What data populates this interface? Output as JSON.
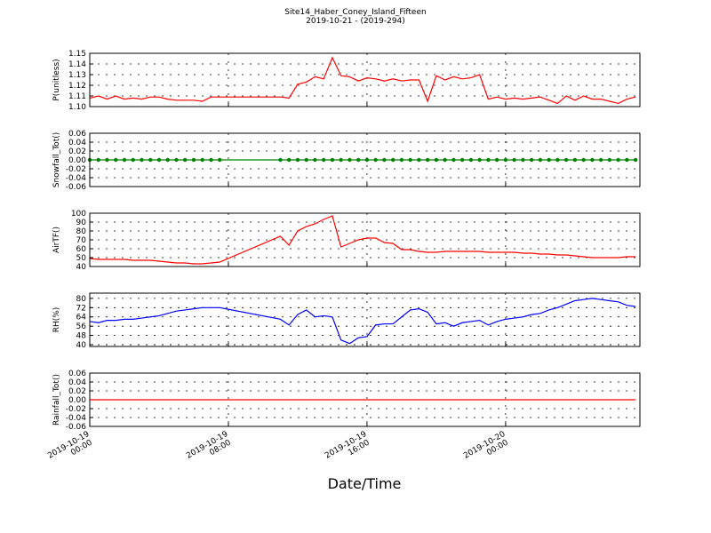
{
  "title": "Site14_Haber_Coney_Island_Fifteen",
  "subtitle": "2019-10-21 - (2019-294)",
  "x_axis": {
    "label": "Date/Time",
    "xlim": [
      "2019-10-19 00:00",
      "2019-10-20 07:45"
    ],
    "xticks": [
      {
        "value": "2019-10-19 00:00",
        "label": "2019-10-19 00:00"
      },
      {
        "value": "2019-10-19 08:00",
        "label": "2019-10-19 08:00"
      },
      {
        "value": "2019-10-19 16:00",
        "label": "2019-10-19 16:00"
      },
      {
        "value": "2019-10-20 00:00",
        "label": "2019-10-20 00:00"
      }
    ],
    "x": [
      "2019-10-19 00:00",
      "2019-10-19 00:30",
      "2019-10-19 01:00",
      "2019-10-19 01:30",
      "2019-10-19 02:00",
      "2019-10-19 02:30",
      "2019-10-19 03:00",
      "2019-10-19 03:30",
      "2019-10-19 04:00",
      "2019-10-19 04:30",
      "2019-10-19 05:00",
      "2019-10-19 05:30",
      "2019-10-19 06:00",
      "2019-10-19 06:30",
      "2019-10-19 07:00",
      "2019-10-19 07:30",
      "2019-10-19 11:00",
      "2019-10-19 11:30",
      "2019-10-19 12:00",
      "2019-10-19 12:30",
      "2019-10-19 13:00",
      "2019-10-19 13:30",
      "2019-10-19 14:00",
      "2019-10-19 14:30",
      "2019-10-19 15:00",
      "2019-10-19 15:30",
      "2019-10-19 16:00",
      "2019-10-19 16:30",
      "2019-10-19 17:00",
      "2019-10-19 17:30",
      "2019-10-19 18:00",
      "2019-10-19 18:30",
      "2019-10-19 19:00",
      "2019-10-19 19:30",
      "2019-10-19 20:00",
      "2019-10-19 20:30",
      "2019-10-19 21:00",
      "2019-10-19 21:30",
      "2019-10-19 22:00",
      "2019-10-19 22:30",
      "2019-10-19 23:00",
      "2019-10-19 23:30",
      "2019-10-20 00:00",
      "2019-10-20 00:30",
      "2019-10-20 01:00",
      "2019-10-20 01:30",
      "2019-10-20 02:00",
      "2019-10-20 02:30",
      "2019-10-20 03:00",
      "2019-10-20 03:30",
      "2019-10-20 04:00",
      "2019-10-20 04:30",
      "2019-10-20 05:00",
      "2019-10-20 05:30",
      "2019-10-20 06:00",
      "2019-10-20 06:30",
      "2019-10-20 07:00",
      "2019-10-20 07:30"
    ]
  },
  "chart_data": [
    {
      "type": "line",
      "ylabel": "P(unitless)",
      "ylim": [
        1.1,
        1.15
      ],
      "grid": true,
      "yticks": [
        {
          "value": 1.1,
          "label": "1.10"
        },
        1.11,
        1.12,
        1.13,
        1.14,
        1.15
      ],
      "series": [
        {
          "color": "#ff0000",
          "marker": false,
          "values": [
            1.108,
            1.11,
            1.107,
            1.11,
            1.107,
            1.108,
            1.107,
            1.109,
            1.109,
            1.107,
            1.106,
            1.106,
            1.106,
            1.105,
            1.109,
            1.109,
            1.109,
            1.108,
            1.121,
            1.123,
            1.128,
            1.126,
            1.146,
            1.129,
            1.128,
            1.124,
            1.127,
            1.126,
            1.124,
            1.126,
            1.124,
            1.125,
            1.125,
            1.105,
            1.129,
            1.125,
            1.128,
            1.126,
            1.127,
            1.13,
            1.107,
            1.109,
            1.107,
            1.108,
            1.107,
            1.108,
            1.109,
            1.106,
            1.103,
            1.11,
            1.106,
            1.11,
            1.107,
            1.107,
            1.105,
            1.103,
            1.107,
            1.109
          ]
        }
      ]
    },
    {
      "type": "line",
      "ylabel": "Snowfall_Tot()",
      "ylim": [
        -0.06,
        0.06
      ],
      "grid": true,
      "yticks": [
        -0.06,
        -0.04,
        -0.02,
        {
          "value": 0,
          "label": "0.00"
        },
        0.02,
        0.04,
        0.06
      ],
      "series": [
        {
          "color": "#008000",
          "marker": true,
          "values": [
            0,
            0,
            0,
            0,
            0,
            0,
            0,
            0,
            0,
            0,
            0,
            0,
            0,
            0,
            0,
            0,
            0,
            0,
            0,
            0,
            0,
            0,
            0,
            0,
            0,
            0,
            0,
            0,
            0,
            0,
            0,
            0,
            0,
            0,
            0,
            0,
            0,
            0,
            0,
            0,
            0,
            0,
            0,
            0,
            0,
            0,
            0,
            0,
            0,
            0,
            0,
            0,
            0,
            0,
            0,
            0,
            0,
            0
          ]
        }
      ]
    },
    {
      "type": "line",
      "ylabel": "AirTF()",
      "ylim": [
        40,
        100
      ],
      "grid": true,
      "yticks": [
        40,
        50,
        60,
        70,
        80,
        90,
        100
      ],
      "series": [
        {
          "color": "#ff0000",
          "marker": false,
          "values": [
            49,
            48,
            48,
            48,
            48,
            47,
            47,
            47,
            46,
            45,
            44,
            44,
            43,
            43,
            44,
            45,
            74,
            64,
            80,
            85,
            88,
            93,
            97,
            62,
            66,
            70,
            72,
            72,
            67,
            66,
            59,
            59,
            57,
            56,
            56,
            57,
            57,
            57,
            57,
            57,
            56,
            56,
            56,
            56,
            55,
            55,
            54,
            54,
            53,
            53,
            52,
            51,
            50,
            50,
            50,
            50,
            51,
            51
          ]
        }
      ]
    },
    {
      "type": "line",
      "ylabel": "RH(%)",
      "ylim": [
        38.5,
        84.5
      ],
      "grid": true,
      "yticks": [
        40,
        48,
        56,
        64,
        72,
        80
      ],
      "series": [
        {
          "color": "#0000ff",
          "marker": false,
          "values": [
            60,
            59,
            61,
            61,
            62,
            62,
            63,
            64,
            65,
            67,
            69,
            70,
            71,
            72,
            72,
            72,
            62,
            57,
            66,
            70,
            64,
            65,
            64,
            44,
            41,
            46,
            47,
            57,
            58,
            58,
            64,
            70,
            71,
            68,
            58,
            59,
            56,
            59,
            60,
            61,
            57,
            60,
            62,
            63,
            64,
            66,
            67,
            70,
            72,
            75,
            78,
            79,
            80,
            79,
            78,
            77,
            74,
            73
          ]
        }
      ]
    },
    {
      "type": "line",
      "ylabel": "Rainfall_Tot()",
      "ylim": [
        -0.06,
        0.06
      ],
      "grid": true,
      "yticks": [
        -0.06,
        -0.04,
        -0.02,
        {
          "value": 0,
          "label": "0.00"
        },
        0.02,
        0.04,
        0.06
      ],
      "series": [
        {
          "color": "#ff0000",
          "marker": false,
          "values": [
            0,
            0,
            0,
            0,
            0,
            0,
            0,
            0,
            0,
            0,
            0,
            0,
            0,
            0,
            0,
            0,
            0,
            0,
            0,
            0,
            0,
            0,
            0,
            0,
            0,
            0,
            0,
            0,
            0,
            0,
            0,
            0,
            0,
            0,
            0,
            0,
            0,
            0,
            0,
            0,
            0,
            0,
            0,
            0,
            0,
            0,
            0,
            0,
            0,
            0,
            0,
            0,
            0,
            0,
            0,
            0,
            0,
            0
          ]
        }
      ]
    }
  ]
}
